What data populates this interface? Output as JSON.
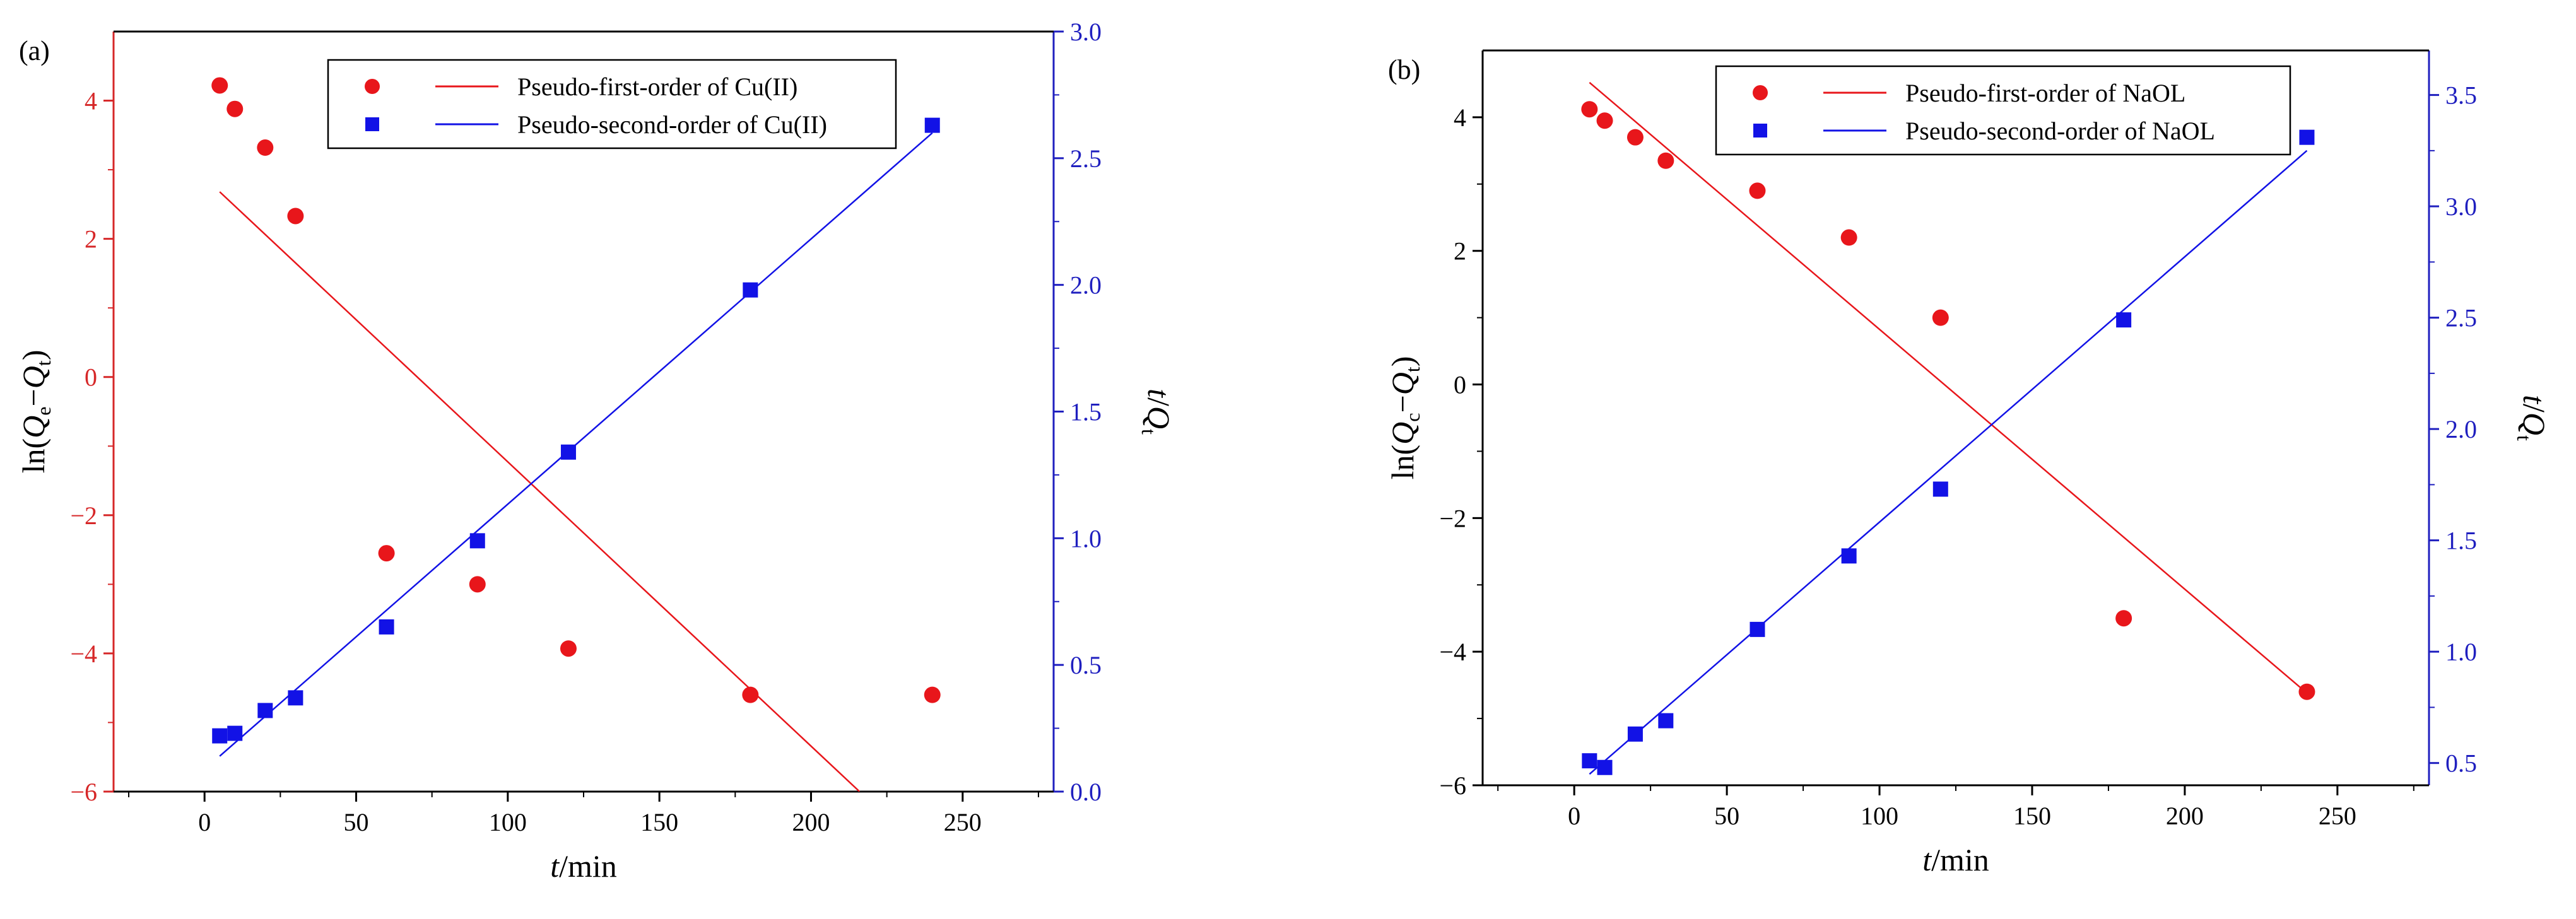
{
  "chart_data": [
    {
      "type": "scatter",
      "panel_label": "(a)",
      "xlabel": "min",
      "xlabel_var": "t",
      "xlim": [
        -30,
        280
      ],
      "xticks": [
        0,
        50,
        100,
        150,
        200,
        250
      ],
      "y_left": {
        "label": "ln(Qe−Qt)",
        "label_parts": {
          "pre": "ln(",
          "v1": "Q",
          "s1": "e",
          "mid": "−",
          "v2": "Q",
          "s2": "t",
          "post": ")"
        },
        "ylim": [
          -6,
          5
        ],
        "ticks": [
          -6,
          -4,
          -2,
          0,
          2,
          4
        ],
        "tick_labels": [
          "−6",
          "−4",
          "−2",
          "0",
          "2",
          "4"
        ],
        "color": "#d62728"
      },
      "y_right": {
        "label": "t/Qt",
        "label_parts": {
          "v1": "t",
          "mid": "/",
          "v2": "Q",
          "s2": "t"
        },
        "ylim": [
          0,
          3.0
        ],
        "ticks": [
          0,
          0.5,
          1.0,
          1.5,
          2.0,
          2.5,
          3.0
        ],
        "tick_labels": [
          "0.0",
          "0.5",
          "1.0",
          "1.5",
          "2.0",
          "2.5",
          "3.0"
        ],
        "color": "#1f1fbf"
      },
      "legend_position": "top-center",
      "series": [
        {
          "name": "Pseudo-first-order of Cu(II)",
          "axis": "left",
          "color": "#e8161b",
          "marker": "circle",
          "x": [
            5,
            10,
            20,
            30,
            60,
            90,
            120,
            180,
            240
          ],
          "y": [
            4.22,
            3.88,
            3.32,
            2.33,
            -2.55,
            -3.0,
            -3.93,
            -4.6,
            -4.6
          ]
        },
        {
          "name": "Pseudo-second-order of Cu(II)",
          "axis": "right",
          "color": "#1212e6",
          "marker": "square",
          "x": [
            5,
            10,
            20,
            30,
            60,
            90,
            120,
            180,
            240
          ],
          "y": [
            0.22,
            0.23,
            0.32,
            0.37,
            0.65,
            0.99,
            1.34,
            1.98,
            2.63
          ]
        }
      ],
      "fit_lines": [
        {
          "series": "Pseudo-first-order of Cu(II)",
          "axis": "left",
          "x": [
            5,
            216
          ],
          "y": [
            2.68,
            -6.0
          ]
        },
        {
          "series": "Pseudo-second-order of Cu(II)",
          "axis": "right",
          "x": [
            5,
            240
          ],
          "y": [
            0.14,
            2.6
          ]
        }
      ]
    },
    {
      "type": "scatter",
      "panel_label": "(b)",
      "xlabel": "min",
      "xlabel_var": "t",
      "xlim": [
        -30,
        280
      ],
      "xticks": [
        0,
        50,
        100,
        150,
        200,
        250
      ],
      "y_left": {
        "label": "ln(Qc−Qt)",
        "label_parts": {
          "pre": "ln(",
          "v1": "Q",
          "s1": "c",
          "mid": "−",
          "v2": "Q",
          "s2": "t",
          "post": ")"
        },
        "ylim": [
          -6,
          5
        ],
        "ticks": [
          -6,
          -4,
          -2,
          0,
          2,
          4
        ],
        "tick_labels": [
          "−6",
          "−4",
          "−2",
          "0",
          "2",
          "4"
        ],
        "color": "#000000"
      },
      "y_right": {
        "label": "t/Qt",
        "label_parts": {
          "v1": "t",
          "mid": "/",
          "v2": "Q",
          "s2": "t"
        },
        "ylim": [
          0.4,
          3.7
        ],
        "ticks": [
          0.5,
          1.0,
          1.5,
          2.0,
          2.5,
          3.0,
          3.5
        ],
        "tick_labels": [
          "0.5",
          "1.0",
          "1.5",
          "2.0",
          "2.5",
          "3.0",
          "3.5"
        ],
        "color": "#1f1fbf"
      },
      "legend_position": "top-center",
      "series": [
        {
          "name": "Pseudo-first-order of NaOL",
          "axis": "left",
          "color": "#e8161b",
          "marker": "circle",
          "x": [
            5,
            10,
            20,
            30,
            60,
            90,
            120,
            180,
            240
          ],
          "y": [
            4.12,
            3.95,
            3.7,
            3.35,
            2.9,
            2.2,
            1.0,
            -3.5,
            -4.6
          ]
        },
        {
          "name": "Pseudo-second-order of NaOL",
          "axis": "right",
          "color": "#1212e6",
          "marker": "square",
          "x": [
            5,
            10,
            20,
            30,
            60,
            90,
            120,
            180,
            240
          ],
          "y": [
            0.51,
            0.48,
            0.63,
            0.69,
            1.1,
            1.43,
            1.73,
            2.49,
            3.31
          ]
        }
      ],
      "fit_lines": [
        {
          "series": "Pseudo-first-order of NaOL",
          "axis": "left",
          "x": [
            5,
            240
          ],
          "y": [
            4.52,
            -4.62
          ]
        },
        {
          "series": "Pseudo-second-order of NaOL",
          "axis": "right",
          "x": [
            5,
            240
          ],
          "y": [
            0.45,
            3.25
          ]
        }
      ]
    }
  ]
}
